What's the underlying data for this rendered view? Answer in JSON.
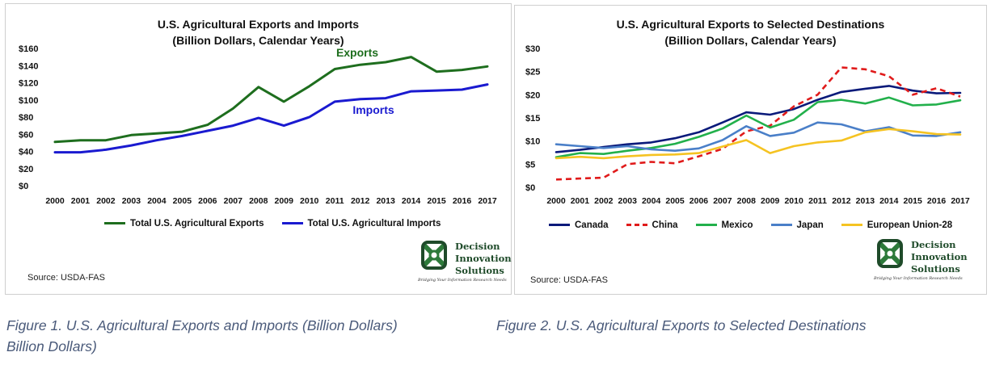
{
  "charts": [
    {
      "title_line1": "U.S. Agricultural Exports and Imports",
      "title_line2": "(Billion Dollars, Calendar Years)",
      "source": "Source: USDA-FAS",
      "logo_lines": [
        "Decision",
        "Innovation",
        "Solutions"
      ],
      "logo_tagline": "Bridging Your Information Research Needs"
    },
    {
      "title_line1": "U.S. Agricultural  Exports to Selected Destinations",
      "title_line2": "(Billion Dollars, Calendar Years)",
      "source": "Source: USDA-FAS",
      "logo_lines": [
        "Decision",
        "Innovation",
        "Solutions"
      ],
      "logo_tagline": "Bridging Your Information Research Needs"
    }
  ],
  "chart_data": [
    {
      "type": "line",
      "title": "U.S. Agricultural Exports and Imports (Billion Dollars, Calendar Years)",
      "x": [
        "2000",
        "2001",
        "2002",
        "2003",
        "2004",
        "2005",
        "2006",
        "2007",
        "2008",
        "2009",
        "2010",
        "2011",
        "2012",
        "2013",
        "2014",
        "2015",
        "2016",
        "2017"
      ],
      "ylim": [
        0,
        160
      ],
      "yticks": [
        "$0",
        "$20",
        "$40",
        "$60",
        "$80",
        "$100",
        "$120",
        "$140",
        "$160"
      ],
      "grid": false,
      "legend_position": "bottom",
      "series": [
        {
          "name": "Total U.S. Agricultural Exports",
          "inline_label": "Exports",
          "color": "#1e6e1e",
          "values": [
            51,
            53,
            53,
            59,
            61,
            63,
            71,
            90,
            115,
            98,
            116,
            136,
            141,
            144,
            150,
            133,
            135,
            139
          ]
        },
        {
          "name": "Total U.S. Agricultural Imports",
          "inline_label": "Imports",
          "color": "#1a1ad0",
          "values": [
            39,
            39,
            42,
            47,
            53,
            58,
            64,
            70,
            79,
            70,
            80,
            98,
            101,
            102,
            110,
            111,
            112,
            118
          ]
        }
      ]
    },
    {
      "type": "line",
      "title": "U.S. Agricultural  Exports to Selected Destinations (Billion Dollars, Calendar Years)",
      "x": [
        "2000",
        "2001",
        "2002",
        "2003",
        "2004",
        "2005",
        "2006",
        "2007",
        "2008",
        "2009",
        "2010",
        "2011",
        "2012",
        "2013",
        "2014",
        "2015",
        "2016",
        "2017"
      ],
      "ylim": [
        0,
        30
      ],
      "yticks": [
        "$0",
        "$5",
        "$10",
        "$15",
        "$20",
        "$25",
        "$30"
      ],
      "grid": false,
      "legend_position": "bottom",
      "series": [
        {
          "name": "Canada",
          "color": "#0a1a7a",
          "dashed": false,
          "values": [
            7.6,
            8.1,
            8.7,
            9.3,
            9.7,
            10.6,
            11.9,
            14.0,
            16.2,
            15.7,
            16.9,
            18.9,
            20.6,
            21.3,
            21.9,
            20.9,
            20.3,
            20.4
          ]
        },
        {
          "name": "China",
          "color": "#e01b1b",
          "dashed": true,
          "values": [
            1.7,
            1.9,
            2.1,
            5.0,
            5.5,
            5.2,
            6.7,
            8.3,
            12.1,
            13.3,
            17.5,
            20.0,
            25.9,
            25.5,
            24.0,
            20.0,
            21.4,
            19.6
          ]
        },
        {
          "name": "Mexico",
          "color": "#22b04b",
          "dashed": false,
          "values": [
            6.5,
            7.4,
            7.2,
            7.9,
            8.5,
            9.4,
            10.9,
            12.7,
            15.5,
            12.9,
            14.6,
            18.4,
            18.9,
            18.1,
            19.4,
            17.7,
            17.9,
            18.8
          ]
        },
        {
          "name": "Japan",
          "color": "#4a7fc8",
          "dashed": false,
          "values": [
            9.3,
            8.9,
            8.5,
            8.9,
            8.2,
            7.9,
            8.4,
            10.2,
            13.2,
            11.1,
            11.8,
            14.0,
            13.6,
            12.1,
            13.0,
            11.2,
            11.1,
            11.9
          ]
        },
        {
          "name": "European Union-28",
          "color": "#f5c322",
          "dashed": false,
          "values": [
            6.3,
            6.6,
            6.3,
            6.7,
            7.0,
            7.1,
            7.4,
            8.8,
            10.2,
            7.4,
            8.9,
            9.7,
            10.1,
            11.9,
            12.6,
            12.1,
            11.5,
            11.4
          ]
        }
      ]
    }
  ],
  "captions": {
    "fig1_line1": "Figure 1. U.S. Agricultural Exports and Imports (Billion Dollars)",
    "fig1_line2": "Billion Dollars)",
    "fig2": "Figure 2. U.S. Agricultural Exports to Selected Destinations"
  }
}
